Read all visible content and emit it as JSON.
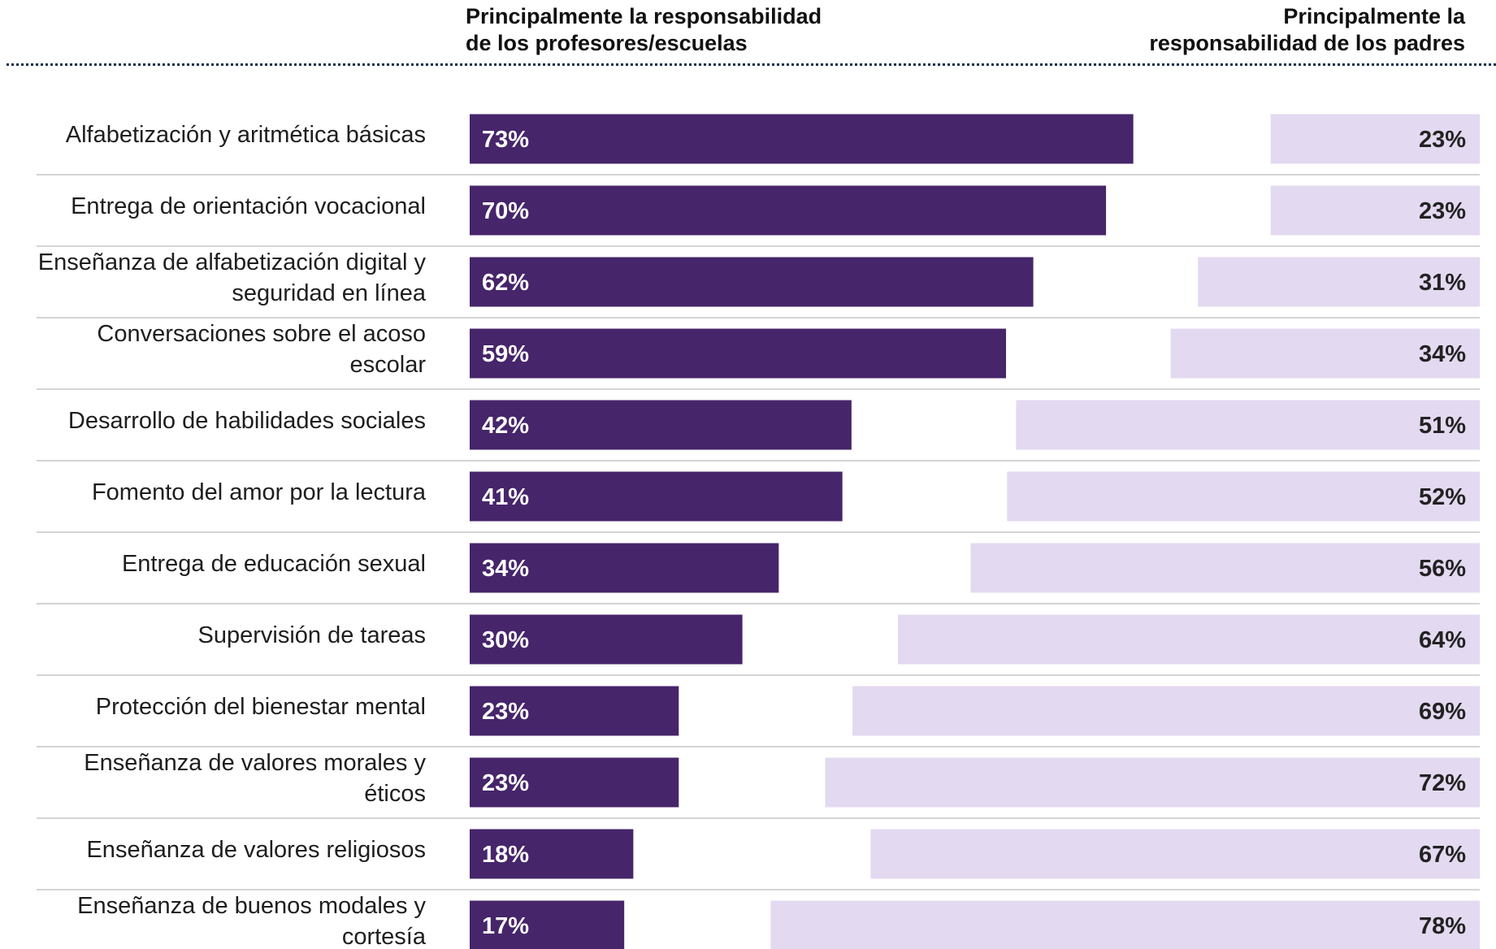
{
  "colors": {
    "teachers": "#46256a",
    "parents": "#e3d9f0",
    "teacher_label": "#ffffff",
    "parent_label": "#222222",
    "header_rule": "#0f2f4a",
    "row_rule": "#d4d4d4"
  },
  "chart_data": {
    "type": "bar",
    "orientation": "horizontal",
    "layout": "diverging",
    "unit": "%",
    "headers": {
      "left": [
        "Principalmente la responsabilidad",
        "de los profesores/escuelas"
      ],
      "right": [
        "Principalmente la",
        "responsabilidad de los padres"
      ]
    },
    "categories": [
      [
        "Alfabetización y aritmética básicas"
      ],
      [
        "Entrega de orientación vocacional"
      ],
      [
        "Enseñanza de alfabetización digital y",
        "seguridad en línea"
      ],
      [
        "Conversaciones sobre el acoso",
        "escolar"
      ],
      [
        "Desarrollo de habilidades sociales"
      ],
      [
        "Fomento del amor por la lectura"
      ],
      [
        "Entrega de educación sexual"
      ],
      [
        "Supervisión de tareas"
      ],
      [
        "Protección del bienestar mental"
      ],
      [
        "Enseñanza de valores morales y",
        "éticos"
      ],
      [
        "Enseñanza de valores religiosos"
      ],
      [
        "Enseñanza de buenos modales y",
        "cortesía"
      ]
    ],
    "series": [
      {
        "name": "Principalmente la responsabilidad de los profesores/escuelas",
        "color": "#46256a",
        "values": [
          73,
          70,
          62,
          59,
          42,
          41,
          34,
          30,
          23,
          23,
          18,
          17
        ],
        "labels": [
          "73%",
          "70%",
          "62%",
          "59%",
          "42%",
          "41%",
          "34%",
          "30%",
          "23%",
          "23%",
          "18%",
          "17%"
        ]
      },
      {
        "name": "Principalmente la responsabilidad de los padres",
        "color": "#e3d9f0",
        "values": [
          23,
          23,
          31,
          34,
          51,
          52,
          56,
          64,
          69,
          72,
          67,
          78
        ],
        "labels": [
          "23%",
          "23%",
          "31%",
          "34%",
          "51%",
          "52%",
          "56%",
          "64%",
          "69%",
          "72%",
          "67%",
          "78%"
        ]
      }
    ],
    "xlim": [
      0,
      100
    ],
    "grid": false,
    "legend": "none"
  }
}
